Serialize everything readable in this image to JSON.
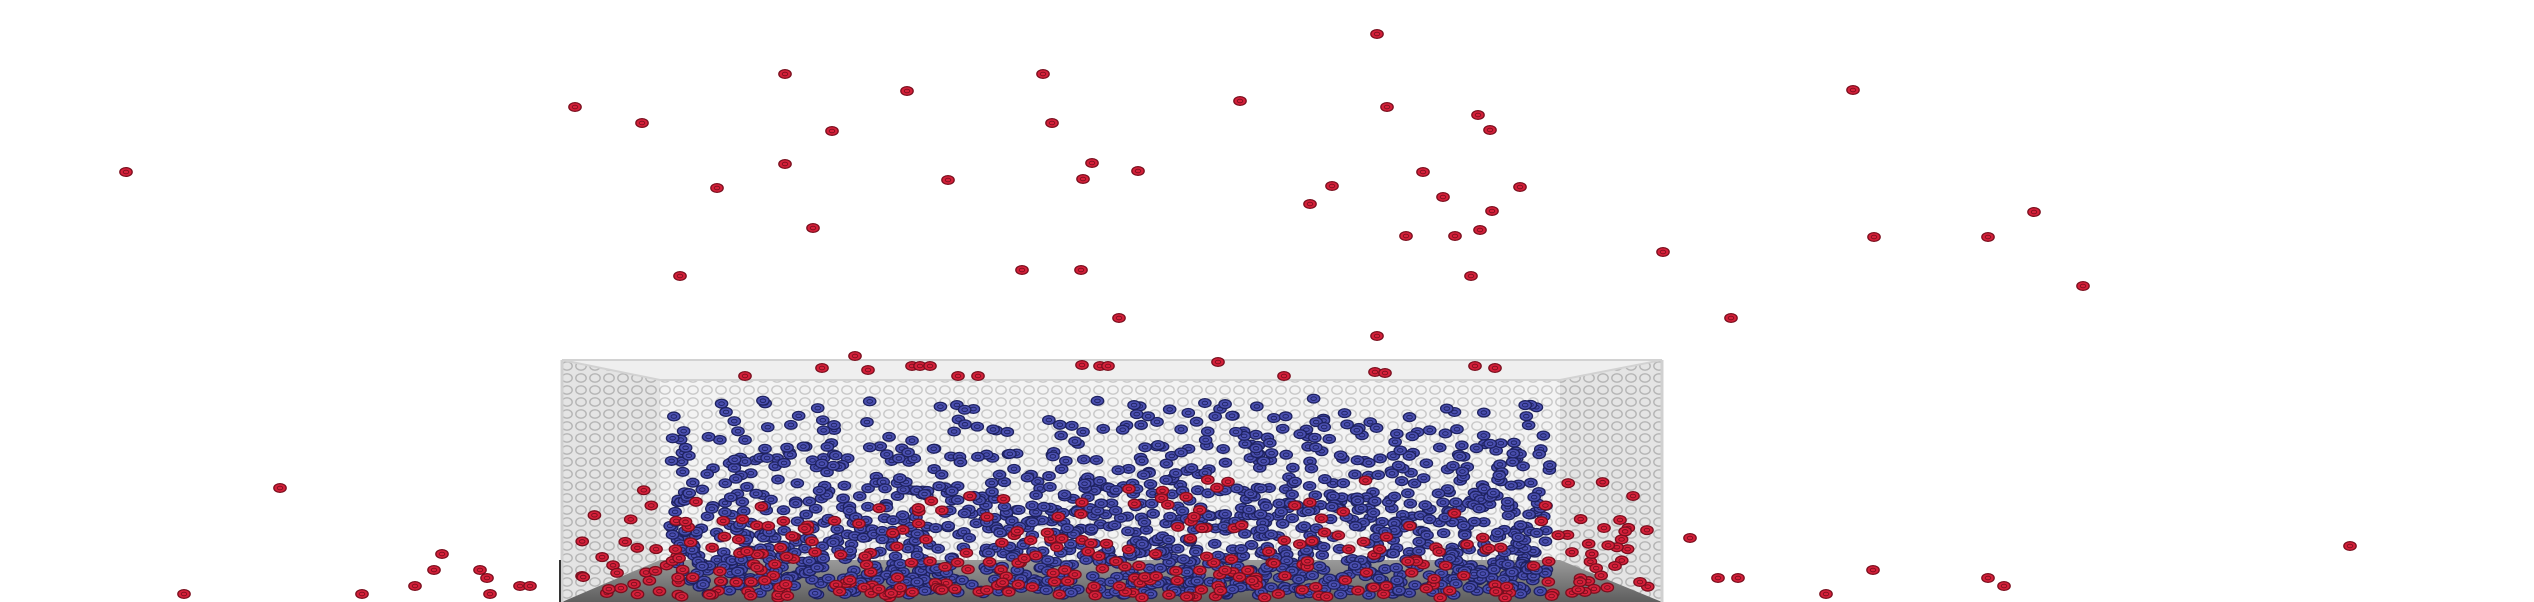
{
  "scene": {
    "description_free": true,
    "colors": {
      "background": "#ffffff",
      "red_particle": "#d6203a",
      "red_particle_stroke": "#7a0f1e",
      "blue_particle": "#4a4fb0",
      "blue_particle_stroke": "#1e2260",
      "wall_light": "#f1f1f1",
      "wall_dot": "#cfcfcf",
      "floor": "#7f7f7f",
      "frame": "#d9d9d9"
    },
    "counts": {
      "blue_particles": 1400,
      "red_particles_inside": 320
    }
  }
}
